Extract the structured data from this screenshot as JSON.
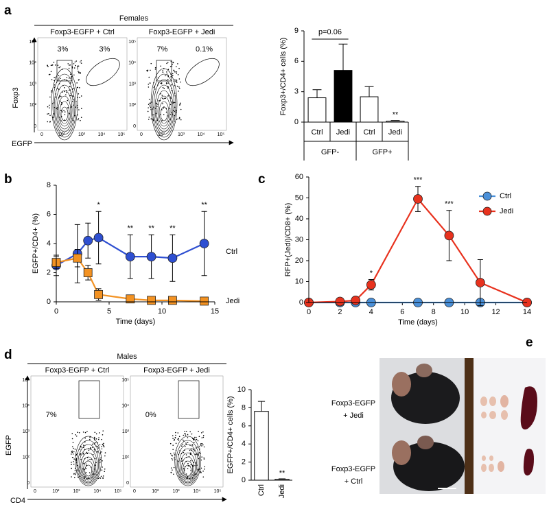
{
  "panel_labels": [
    "a",
    "b",
    "c",
    "d",
    "e"
  ],
  "flow_a": {
    "group": "Females",
    "plots": [
      {
        "title": "Foxp3-EGFP + Ctrl",
        "gates": [
          "3%",
          "3%"
        ]
      },
      {
        "title": "Foxp3-EGFP + Jedi",
        "gates": [
          "7%",
          "0.1%"
        ]
      }
    ],
    "y_label": "Foxp3",
    "x_label": "EGFP",
    "ticks": [
      "0",
      "10²",
      "10³",
      "10⁴",
      "10⁵"
    ]
  },
  "flow_d": {
    "group": "Males",
    "plots": [
      {
        "title": "Foxp3-EGFP + Ctrl",
        "gates": [
          "7%"
        ]
      },
      {
        "title": "Foxp3-EGFP + Jedi",
        "gates": [
          "0%"
        ]
      }
    ],
    "y_label": "EGFP",
    "x_label": "CD4",
    "ticks": [
      "0",
      "10²",
      "10³",
      "10⁴",
      "10⁵"
    ]
  },
  "photo_e": {
    "rows": [
      [
        "Foxp3-EGFP",
        "+ Jedi"
      ],
      [
        "Foxp3-EGFP",
        "+ Ctrl"
      ]
    ]
  },
  "chart_data": [
    {
      "type": "bar",
      "ylabel": "Foxp3+/CD4+ cells (%)",
      "categories": [
        "Ctrl",
        "Jedi",
        "Ctrl",
        "Jedi"
      ],
      "groups": [
        "GFP-",
        "GFP+"
      ],
      "values": [
        2.4,
        5.1,
        2.5,
        0.1
      ],
      "errors": [
        0.8,
        2.6,
        1.0,
        0.05
      ],
      "colors": [
        "#ffffff",
        "#000000",
        "#ffffff",
        "#ffffff"
      ],
      "significance": [
        null,
        null,
        null,
        "**"
      ],
      "annotation": "p=0.06",
      "ylim": [
        0,
        9
      ],
      "yticks": [
        0,
        3,
        6,
        9
      ]
    },
    {
      "type": "line",
      "xlabel": "Time (days)",
      "ylabel": "EGFP+/CD4+ (%)",
      "x": [
        0,
        2,
        3,
        4,
        7,
        9,
        11,
        14
      ],
      "series": [
        {
          "name": "Ctrl",
          "color": "#2e4fd1",
          "marker": "circle",
          "values": [
            2.5,
            3.3,
            4.2,
            4.4,
            3.1,
            3.1,
            3.0,
            4.0
          ],
          "errors": [
            0.7,
            2.0,
            1.2,
            1.8,
            1.5,
            1.5,
            1.6,
            2.2
          ]
        },
        {
          "name": "Jedi",
          "color": "#f39222",
          "marker": "square",
          "values": [
            2.7,
            3.0,
            2.0,
            0.5,
            0.2,
            0.1,
            0.1,
            0.05
          ],
          "errors": [
            0.4,
            0.6,
            0.5,
            0.4,
            0.2,
            0.1,
            0.1,
            0.05
          ]
        }
      ],
      "significance": [
        null,
        null,
        null,
        "*",
        "**",
        "**",
        "**",
        "**"
      ],
      "legend": "direct",
      "xlim": [
        0,
        15
      ],
      "xticks": [
        0,
        5,
        10,
        15
      ],
      "ylim": [
        0,
        8
      ],
      "yticks": [
        0,
        2,
        4,
        6,
        8
      ]
    },
    {
      "type": "line",
      "xlabel": "Time (days)",
      "ylabel": "RFP+(Jedi)/CD8+ (%)",
      "x": [
        0,
        2,
        3,
        4,
        7,
        9,
        11,
        14
      ],
      "series": [
        {
          "name": "Ctrl",
          "color": "#4a90d9",
          "marker": "circle",
          "values": [
            0,
            0,
            0,
            0,
            0,
            0,
            0,
            0
          ]
        },
        {
          "name": "Jedi",
          "color": "#e8321e",
          "marker": "circle",
          "values": [
            0,
            0.5,
            1,
            8.5,
            49.5,
            32,
            9.5,
            0
          ],
          "errors": [
            0,
            0.5,
            0.5,
            2.5,
            6,
            12,
            11,
            0
          ]
        }
      ],
      "significance": [
        null,
        null,
        null,
        "*",
        "***",
        "***",
        null,
        null
      ],
      "legend": "upper right",
      "xlim": [
        0,
        14
      ],
      "xticks": [
        0,
        2,
        4,
        6,
        8,
        10,
        12,
        14
      ],
      "ylim": [
        0,
        60
      ],
      "yticks": [
        0,
        10,
        20,
        30,
        40,
        50,
        60
      ]
    },
    {
      "type": "bar",
      "ylabel": "EGFP+/CD4+ cells (%)",
      "categories": [
        "Ctrl",
        "Jedi"
      ],
      "values": [
        7.6,
        0.1
      ],
      "errors": [
        1.1,
        0.05
      ],
      "colors": [
        "#ffffff",
        "#ffffff"
      ],
      "significance": [
        null,
        "**"
      ],
      "label_rotation": -90,
      "ylim": [
        0,
        10
      ],
      "yticks": [
        0,
        2,
        4,
        6,
        8,
        10
      ]
    }
  ]
}
